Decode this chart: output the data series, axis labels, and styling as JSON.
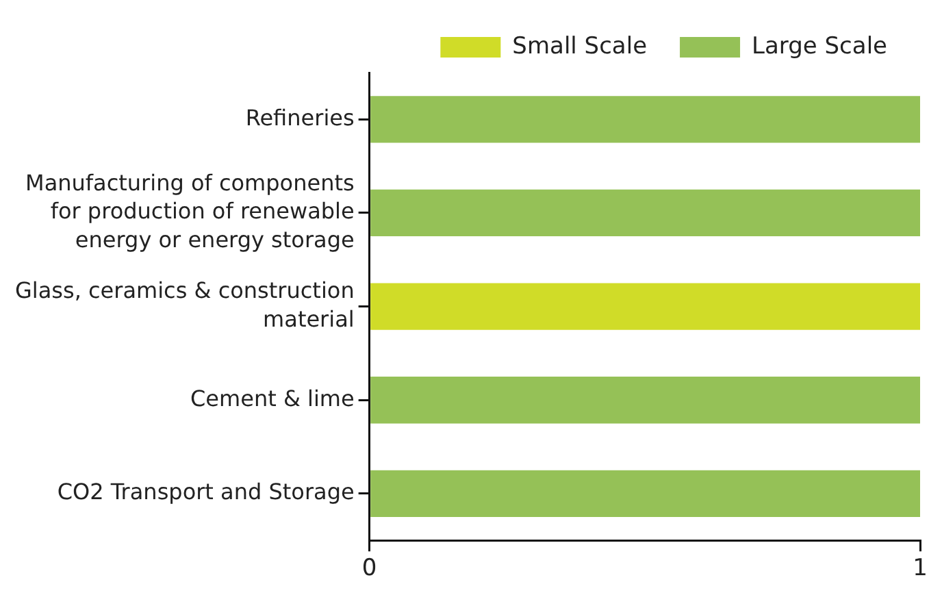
{
  "chart_data": {
    "type": "bar",
    "orientation": "horizontal",
    "stacked": true,
    "categories": [
      "Refineries",
      "Manufacturing of components for production of renewable energy or energy storage",
      "Glass, ceramics & construction material",
      "Cement & lime",
      "CO2 Transport and Storage"
    ],
    "series": [
      {
        "name": "Small Scale",
        "color": "#d0dc28",
        "values": [
          null,
          null,
          1,
          null,
          null
        ]
      },
      {
        "name": "Large Scale",
        "color": "#95c157",
        "values": [
          1,
          1,
          null,
          1,
          1
        ]
      }
    ],
    "xlim": [
      0,
      1
    ],
    "xticks": [
      0,
      1
    ],
    "grid": false,
    "legend": "top right"
  }
}
